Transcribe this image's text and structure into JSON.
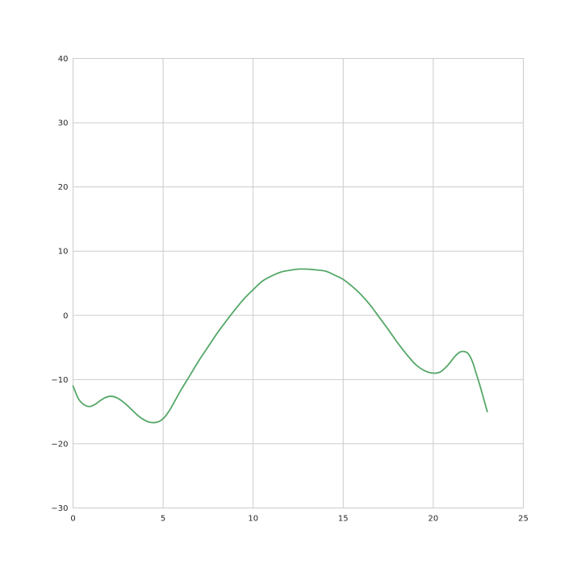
{
  "chart_data": {
    "type": "line",
    "title": "",
    "xlabel": "",
    "ylabel": "",
    "xlim": [
      0,
      25
    ],
    "ylim": [
      -30,
      40
    ],
    "x_ticks": [
      "0",
      "5",
      "10",
      "15",
      "20",
      "25"
    ],
    "y_ticks": [
      "40",
      "30",
      "20",
      "10",
      "0",
      "−10",
      "−20",
      "−30"
    ],
    "grid": true,
    "legend": "none",
    "series": [
      {
        "color": "#55a868",
        "x": [
          0.0,
          0.3,
          0.6,
          0.9,
          1.2,
          1.5,
          1.8,
          2.1,
          2.4,
          2.7,
          3.0,
          3.3,
          3.6,
          3.9,
          4.2,
          4.5,
          4.8,
          5.1,
          5.4,
          5.7,
          6.0,
          6.5,
          7.0,
          7.5,
          8.0,
          8.5,
          9.0,
          9.5,
          10.0,
          10.5,
          11.0,
          11.5,
          12.0,
          12.5,
          13.0,
          13.4,
          14.0,
          14.5,
          15.0,
          15.5,
          16.0,
          16.5,
          17.0,
          17.5,
          18.0,
          18.5,
          19.0,
          19.5,
          20.0,
          20.4,
          20.8,
          21.2,
          21.5,
          21.8,
          22.0,
          22.2,
          22.4,
          22.6,
          22.8,
          23.0
        ],
        "y": [
          -11.0,
          -13.0,
          -13.9,
          -14.2,
          -13.9,
          -13.3,
          -12.8,
          -12.6,
          -12.8,
          -13.3,
          -14.0,
          -14.8,
          -15.6,
          -16.2,
          -16.6,
          -16.7,
          -16.5,
          -15.8,
          -14.6,
          -13.1,
          -11.6,
          -9.3,
          -7.0,
          -4.9,
          -2.8,
          -0.9,
          0.9,
          2.6,
          4.0,
          5.3,
          6.1,
          6.7,
          7.0,
          7.2,
          7.2,
          7.1,
          6.9,
          6.3,
          5.6,
          4.5,
          3.2,
          1.6,
          -0.3,
          -2.2,
          -4.2,
          -6.0,
          -7.6,
          -8.6,
          -9.0,
          -8.8,
          -7.8,
          -6.4,
          -5.7,
          -5.7,
          -6.2,
          -7.4,
          -9.2,
          -11.0,
          -13.0,
          -15.0
        ]
      }
    ]
  }
}
